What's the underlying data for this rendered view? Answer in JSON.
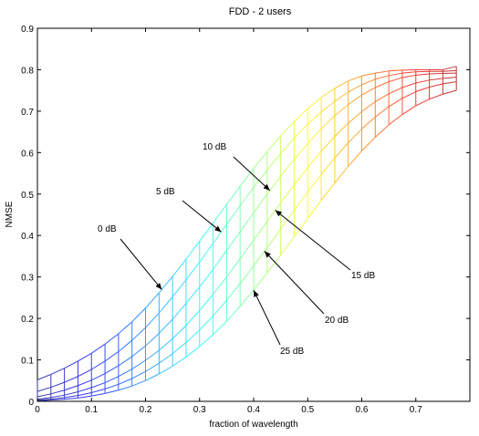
{
  "chart_data": {
    "type": "line",
    "title": "FDD - 2 users",
    "xlabel": "fraction of wavelength",
    "ylabel": "NMSE",
    "xlim": [
      0,
      0.8
    ],
    "ylim": [
      0,
      0.9
    ],
    "xticks": [
      0,
      0.1,
      0.2,
      0.3,
      0.4,
      0.5,
      0.6,
      0.7
    ],
    "xtick_labels": [
      "0",
      "0.1",
      "0.2",
      "0.3",
      "0.4",
      "0.5",
      "0.6",
      "0.7"
    ],
    "yticks": [
      0,
      0.1,
      0.2,
      0.3,
      0.4,
      0.5,
      0.6,
      0.7,
      0.8,
      0.9
    ],
    "ytick_labels": [
      "0",
      "0.1",
      "0.2",
      "0.3",
      "0.4",
      "0.5",
      "0.6",
      "0.7",
      "0.8",
      "0.9"
    ],
    "grid": false,
    "colormap": "jet (blue at low fraction to red at high fraction)",
    "x": [
      0,
      0.025,
      0.05,
      0.075,
      0.1,
      0.125,
      0.15,
      0.175,
      0.2,
      0.225,
      0.25,
      0.275,
      0.3,
      0.325,
      0.35,
      0.375,
      0.4,
      0.425,
      0.45,
      0.475,
      0.5,
      0.525,
      0.55,
      0.575,
      0.6,
      0.625,
      0.65,
      0.675,
      0.7,
      0.725,
      0.75,
      0.775
    ],
    "series": [
      {
        "name": "0 dB",
        "values": [
          0.052,
          0.065,
          0.08,
          0.097,
          0.116,
          0.138,
          0.163,
          0.192,
          0.225,
          0.262,
          0.301,
          0.343,
          0.386,
          0.43,
          0.475,
          0.519,
          0.562,
          0.602,
          0.64,
          0.675,
          0.706,
          0.733,
          0.755,
          0.773,
          0.785,
          0.792,
          0.797,
          0.799,
          0.8,
          0.8,
          0.8,
          0.808
        ]
      },
      {
        "name": "5 dB",
        "values": [
          0.024,
          0.034,
          0.046,
          0.06,
          0.077,
          0.097,
          0.12,
          0.147,
          0.178,
          0.213,
          0.252,
          0.293,
          0.336,
          0.381,
          0.427,
          0.472,
          0.516,
          0.558,
          0.598,
          0.635,
          0.668,
          0.698,
          0.724,
          0.746,
          0.764,
          0.777,
          0.786,
          0.792,
          0.795,
          0.796,
          0.796,
          0.798
        ]
      },
      {
        "name": "10 dB",
        "values": [
          0.011,
          0.018,
          0.027,
          0.038,
          0.051,
          0.067,
          0.086,
          0.108,
          0.134,
          0.164,
          0.198,
          0.236,
          0.276,
          0.319,
          0.364,
          0.409,
          0.455,
          0.5,
          0.543,
          0.584,
          0.622,
          0.657,
          0.689,
          0.716,
          0.739,
          0.757,
          0.771,
          0.781,
          0.787,
          0.79,
          0.791,
          0.792
        ]
      },
      {
        "name": "15 dB",
        "values": [
          0.005,
          0.009,
          0.015,
          0.023,
          0.033,
          0.045,
          0.06,
          0.078,
          0.099,
          0.123,
          0.151,
          0.183,
          0.219,
          0.258,
          0.3,
          0.344,
          0.389,
          0.434,
          0.479,
          0.522,
          0.564,
          0.603,
          0.639,
          0.671,
          0.699,
          0.723,
          0.742,
          0.757,
          0.768,
          0.775,
          0.779,
          0.782
        ]
      },
      {
        "name": "20 dB",
        "values": [
          0.003,
          0.005,
          0.009,
          0.014,
          0.021,
          0.03,
          0.041,
          0.055,
          0.072,
          0.092,
          0.115,
          0.142,
          0.172,
          0.206,
          0.244,
          0.284,
          0.327,
          0.371,
          0.416,
          0.461,
          0.505,
          0.547,
          0.587,
          0.624,
          0.657,
          0.686,
          0.711,
          0.731,
          0.747,
          0.758,
          0.766,
          0.771
        ]
      },
      {
        "name": "25 dB",
        "values": [
          0.001,
          0.003,
          0.005,
          0.008,
          0.013,
          0.019,
          0.027,
          0.037,
          0.05,
          0.066,
          0.085,
          0.107,
          0.132,
          0.161,
          0.193,
          0.229,
          0.268,
          0.31,
          0.353,
          0.397,
          0.441,
          0.485,
          0.527,
          0.567,
          0.604,
          0.637,
          0.667,
          0.692,
          0.713,
          0.729,
          0.741,
          0.75
        ]
      }
    ],
    "annotations": [
      {
        "text": "0 dB",
        "target_series": "0 dB",
        "x": 0.23
      },
      {
        "text": "5 dB",
        "target_series": "5 dB",
        "x": 0.34
      },
      {
        "text": "10 dB",
        "target_series": "10 dB",
        "x": 0.43
      },
      {
        "text": "15 dB",
        "target_series": "15 dB",
        "x": 0.44
      },
      {
        "text": "20 dB",
        "target_series": "20 dB",
        "x": 0.42
      },
      {
        "text": "25 dB",
        "target_series": "25 dB",
        "x": 0.4
      }
    ]
  }
}
